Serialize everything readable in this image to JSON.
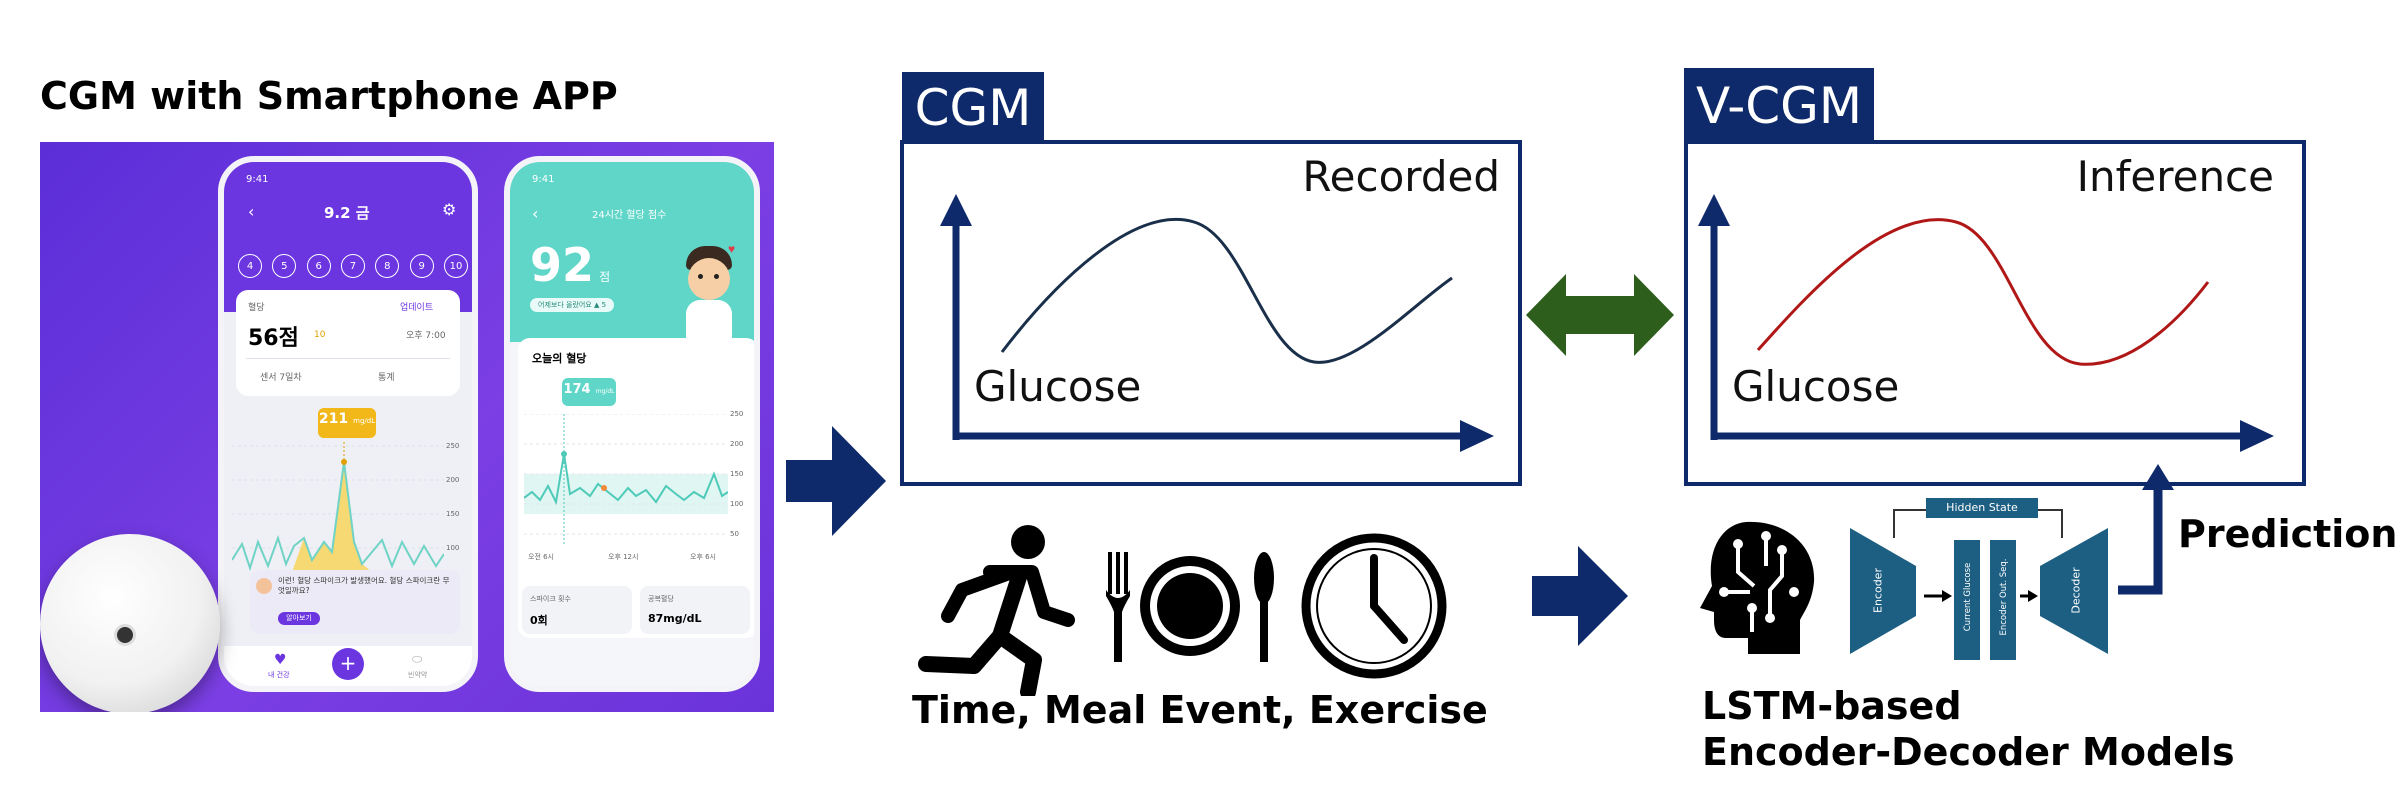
{
  "left_panel": {
    "title": "CGM with Smartphone APP",
    "phone1": {
      "time": "9:41",
      "date": "9.2 금",
      "days": [
        "4",
        "5",
        "6",
        "7",
        "8",
        "9",
        "10"
      ],
      "card_label": "혈당",
      "update": "업데이트",
      "score": "56점",
      "score_delta": "10",
      "score_time": "오후 7:00",
      "sensor_tab": "센서 7일차",
      "stats_tab": "통계",
      "reading": "211",
      "reading_unit": "mg/dL",
      "y_ticks": [
        "250",
        "200",
        "150",
        "100"
      ],
      "alert_text": "이런! 혈당 스파이크가 발생했어요. 혈당 스파이크란 무엇일까요?",
      "alert_button": "알아보기",
      "nav_home": "내 건강",
      "nav_add": "+",
      "nav_pill": "빈약약"
    },
    "phone2": {
      "time": "9:41",
      "header": "24시간 혈당 점수",
      "score": "92",
      "score_unit": "점",
      "badge": "어제보다 올랐어요 ▲ 5",
      "section": "오늘의 혈당",
      "reading": "174",
      "reading_unit": "mg/dL",
      "y_ticks": [
        "250",
        "200",
        "150",
        "100",
        "50"
      ],
      "x_ticks": [
        "오전 6시",
        "오후 12시",
        "오후 6시"
      ],
      "stat1_label": "스파이크 횟수",
      "stat1_value": "0회",
      "stat2_label": "공복혈당",
      "stat2_value": "87mg/dL"
    }
  },
  "cgm_panel": {
    "tab": "CGM",
    "corner_label": "Recorded",
    "axis_label": "Glucose"
  },
  "vcgm_panel": {
    "tab": "V-CGM",
    "corner_label": "Inference",
    "axis_label": "Glucose"
  },
  "inputs": {
    "caption": "Time, Meal Event, Exercise"
  },
  "model": {
    "hidden_state": "Hidden State",
    "encoder": "Encoder",
    "current_glucose": "Current Glucose",
    "encoder_out": "Encoder Out. Seq.",
    "decoder": "Decoder",
    "prediction": "Prediction",
    "caption_line1": "LSTM-based",
    "caption_line2": "Encoder-Decoder Models"
  },
  "colors": {
    "navy": "#0e2a6b",
    "recorded_curve": "#1a2f4a",
    "inference_curve": "#b01818",
    "double_arrow": "#2e5e1c",
    "purple": "#7b3fe4",
    "teal": "#5fd6c8",
    "model_blue": "#1d5f82"
  },
  "icons": [
    "runner-icon",
    "plate-cutlery-icon",
    "clock-icon",
    "brain-circuit-icon",
    "cgm-sensor-icon"
  ]
}
